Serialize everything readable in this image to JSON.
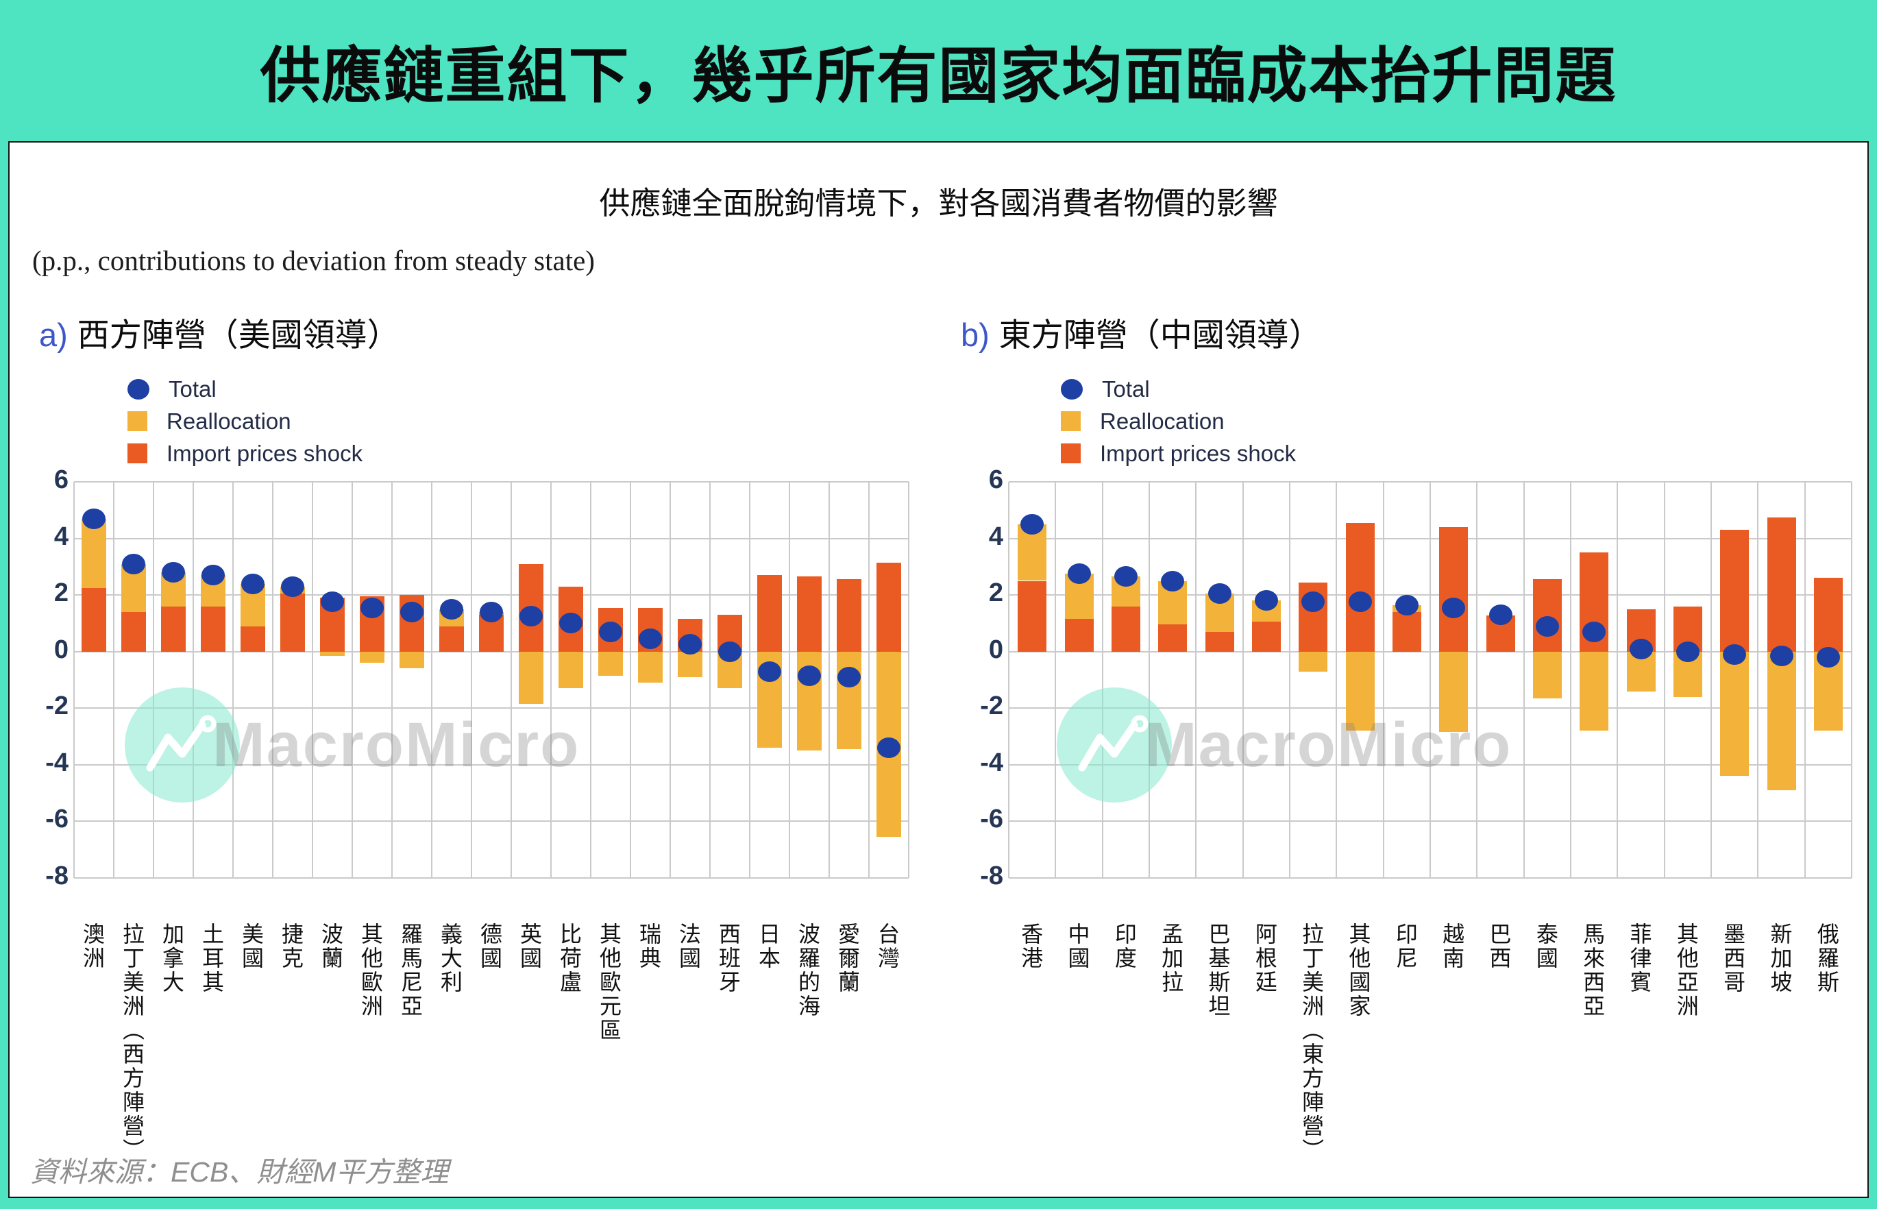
{
  "banner": {
    "title": "供應鏈重組下，幾乎所有國家均面臨成本抬升問題"
  },
  "subtitle": "供應鏈全面脫鉤情境下，對各國消費者物價的影響",
  "axis_note": "(p.p., contributions to deviation from steady state)",
  "source": "資料來源：ECB、財經M平方整理",
  "watermark": {
    "brand": "MacroMicro"
  },
  "legend": {
    "total": "Total",
    "reallocation": "Reallocation",
    "import": "Import prices shock"
  },
  "colors": {
    "banner_teal": "#4EE3C1",
    "bar_yellow": "#F3B33A",
    "bar_red": "#E95B23",
    "dot_blue": "#1E3FA3",
    "grid": "#CACACA",
    "panel_letter_blue": "#3D56C9"
  },
  "chart_data": [
    {
      "type": "bar",
      "panel_label": "a)",
      "title": "西方陣營（美國領導）",
      "ylim": [
        -8,
        6
      ],
      "yticks": [
        6,
        4,
        2,
        0,
        -2,
        -4,
        -6,
        -8
      ],
      "grid": true,
      "legend_position": "top-left",
      "categories": [
        "澳洲",
        "拉丁美洲（西方陣營）",
        "加拿大",
        "土耳其",
        "美國",
        "捷克",
        "波蘭",
        "其他歐洲",
        "羅馬尼亞",
        "義大利",
        "德國",
        "英國",
        "比荷盧",
        "其他歐元區",
        "瑞典",
        "法國",
        "西班牙",
        "日本",
        "波羅的海",
        "愛爾蘭",
        "台灣"
      ],
      "series": [
        {
          "name": "Import prices shock",
          "values": [
            2.25,
            1.4,
            1.6,
            1.6,
            0.9,
            2.05,
            1.9,
            1.95,
            2.0,
            0.9,
            1.3,
            3.1,
            2.3,
            1.55,
            1.55,
            1.15,
            1.3,
            2.7,
            2.65,
            2.55,
            3.15
          ]
        },
        {
          "name": "Reallocation",
          "values": [
            2.45,
            1.7,
            1.2,
            1.1,
            1.5,
            0.25,
            -0.15,
            -0.4,
            -0.6,
            0.6,
            0.1,
            -1.85,
            -1.3,
            -0.85,
            -1.1,
            -0.9,
            -1.3,
            -3.4,
            -3.5,
            -3.45,
            -6.55
          ]
        },
        {
          "name": "Total",
          "values": [
            4.7,
            3.1,
            2.8,
            2.7,
            2.4,
            2.3,
            1.75,
            1.55,
            1.4,
            1.5,
            1.4,
            1.25,
            1.0,
            0.7,
            0.45,
            0.25,
            0.0,
            -0.7,
            -0.85,
            -0.9,
            -3.4
          ]
        }
      ]
    },
    {
      "type": "bar",
      "panel_label": "b)",
      "title": "東方陣營（中國領導）",
      "ylim": [
        -8,
        6
      ],
      "yticks": [
        6,
        4,
        2,
        0,
        -2,
        -4,
        -6,
        -8
      ],
      "grid": true,
      "legend_position": "top-left",
      "categories": [
        "香港",
        "中國",
        "印度",
        "孟加拉",
        "巴基斯坦",
        "阿根廷",
        "拉丁美洲（東方陣營）",
        "其他國家",
        "印尼",
        "越南",
        "巴西",
        "泰國",
        "馬來西亞",
        "菲律賓",
        "其他亞洲",
        "墨西哥",
        "新加坡",
        "俄羅斯"
      ],
      "series": [
        {
          "name": "Import prices shock",
          "values": [
            2.5,
            1.15,
            1.6,
            0.95,
            0.7,
            1.05,
            2.45,
            4.55,
            1.4,
            4.4,
            1.25,
            2.55,
            3.5,
            1.5,
            1.6,
            4.3,
            4.75,
            2.6
          ]
        },
        {
          "name": "Reallocation",
          "values": [
            2.0,
            1.6,
            1.05,
            1.55,
            1.35,
            0.75,
            -0.7,
            -2.8,
            0.25,
            -2.85,
            0.05,
            -1.65,
            -2.8,
            -1.4,
            -1.6,
            -4.4,
            -4.9,
            -2.8
          ]
        },
        {
          "name": "Total",
          "values": [
            4.5,
            2.75,
            2.65,
            2.5,
            2.05,
            1.8,
            1.75,
            1.75,
            1.65,
            1.55,
            1.3,
            0.9,
            0.7,
            0.1,
            0.0,
            -0.1,
            -0.15,
            -0.2
          ]
        }
      ]
    }
  ]
}
